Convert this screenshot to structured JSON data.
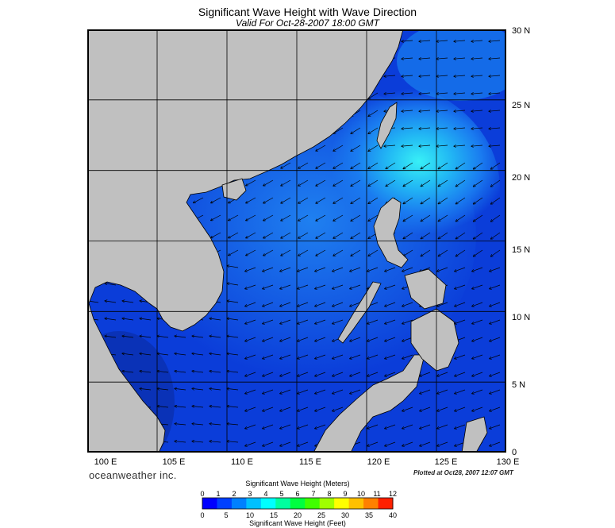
{
  "title": "Significant Wave Height with Wave Direction",
  "subtitle": "Valid For Oct-28-2007 18:00 GMT",
  "branding": "oceanweather inc.",
  "plotted": "Plotted at Oct28, 2007 12:07 GMT",
  "map": {
    "lon_range": [
      100,
      130
    ],
    "lat_range": [
      0,
      30
    ],
    "lat_labels": [
      "30 N",
      "25 N",
      "20 N",
      "15 N",
      "10 N",
      "5 N",
      "0"
    ],
    "lon_labels": [
      "100 E",
      "105 E",
      "110 E",
      "115 E",
      "120 E",
      "125 E",
      "130 E"
    ],
    "colors": {
      "land": "#c0c0c0",
      "sea_low": "#0a3ad8",
      "sea_mid": "#1f8ff2",
      "sea_high": "#33e6f5",
      "frame": "#000000"
    },
    "wave_direction": "arrows predominantly toward the southwest, following the northeast monsoon",
    "max_wave_region": "Luzon Strait, approx. 20N 120E"
  },
  "colorbar": {
    "meters_title": "Significant Wave Height (Meters)",
    "feet_title": "Significant Wave Height (Feet)",
    "meters_ticks": [
      "0",
      "1",
      "2",
      "3",
      "4",
      "5",
      "6",
      "7",
      "8",
      "9",
      "10",
      "11",
      "12"
    ],
    "feet_ticks": [
      "0",
      "5",
      "10",
      "15",
      "20",
      "25",
      "30",
      "35",
      "40"
    ],
    "colors": [
      "#0000ff",
      "#0040ff",
      "#0080ff",
      "#00c0ff",
      "#00ffff",
      "#00ff9f",
      "#00ff40",
      "#40ff00",
      "#a0ff00",
      "#ffff00",
      "#ffc000",
      "#ff8000",
      "#ff2000"
    ]
  }
}
